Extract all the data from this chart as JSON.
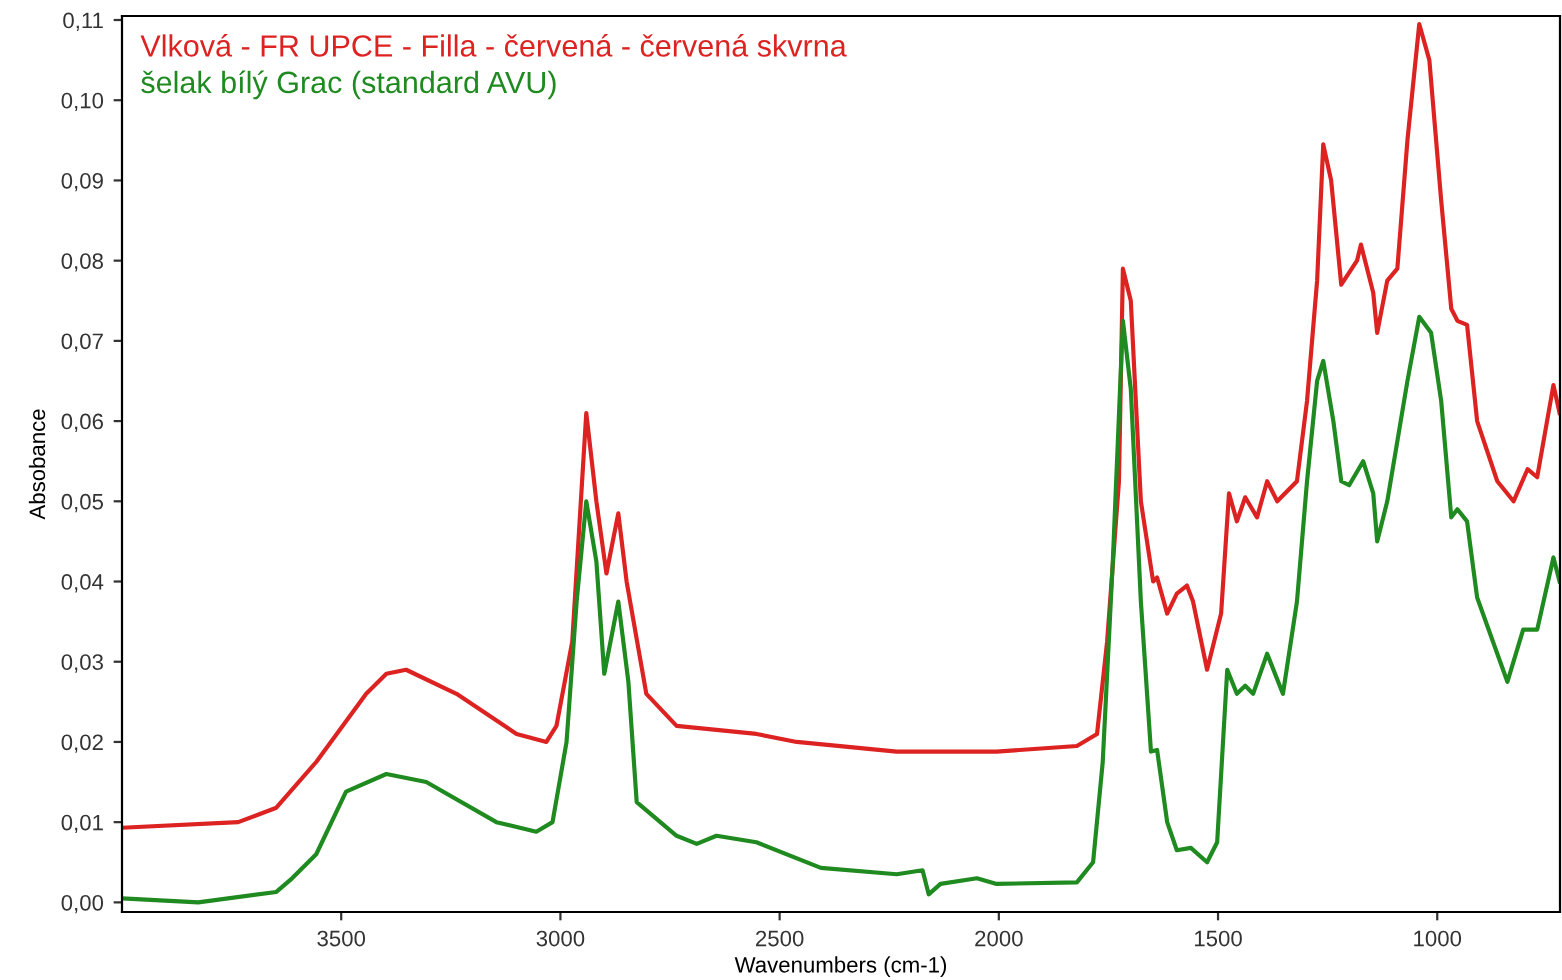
{
  "chart_data": {
    "type": "line",
    "xlabel": "Wavenumbers (cm-1)",
    "ylabel": "Absobance",
    "legend": "top left",
    "grid": false,
    "marker": "none",
    "line_style": "solid",
    "xlim": [
      4000,
      720
    ],
    "ylim": [
      -0.0012,
      0.1105
    ],
    "xticks": [
      3500,
      3000,
      2500,
      2000,
      1500,
      1000
    ],
    "yticks": [
      {
        "value": 0,
        "label": "0,00"
      },
      {
        "value": 0.01,
        "label": "0,01"
      },
      {
        "value": 0.02,
        "label": "0,02"
      },
      {
        "value": 0.03,
        "label": "0,03"
      },
      {
        "value": 0.04,
        "label": "0,04"
      },
      {
        "value": 0.05,
        "label": "0,05"
      },
      {
        "value": 0.06,
        "label": "0,06"
      },
      {
        "value": 0.07,
        "label": "0,07"
      },
      {
        "value": 0.08,
        "label": "0,08"
      },
      {
        "value": 0.09,
        "label": "0,09"
      },
      {
        "value": 0.1,
        "label": "0,10"
      },
      {
        "value": 0.11,
        "label": "0,11"
      }
    ],
    "series": [
      {
        "name": "Vlková - FR UPCE - Filla - červená - červená skvrna",
        "color": "#dd2222",
        "x": [
          4000,
          3735,
          3648,
          3557,
          3443,
          3397,
          3352,
          3237,
          3100,
          3032,
          3009,
          2973,
          2941,
          2918,
          2895,
          2868,
          2849,
          2804,
          2735,
          2553,
          2461,
          2233,
          2005,
          1822,
          1776,
          1753,
          1726,
          1717,
          1699,
          1676,
          1648,
          1639,
          1616,
          1594,
          1571,
          1557,
          1525,
          1493,
          1475,
          1457,
          1438,
          1411,
          1388,
          1365,
          1320,
          1297,
          1274,
          1260,
          1242,
          1219,
          1183,
          1174,
          1146,
          1137,
          1114,
          1091,
          1068,
          1041,
          1018,
          991,
          968,
          954,
          932,
          909,
          863,
          826,
          794,
          772,
          735,
          721
        ],
        "values": [
          0.0093,
          0.01,
          0.0118,
          0.0175,
          0.026,
          0.0285,
          0.029,
          0.026,
          0.021,
          0.02,
          0.022,
          0.0325,
          0.061,
          0.05,
          0.041,
          0.0485,
          0.04,
          0.026,
          0.022,
          0.021,
          0.02,
          0.0188,
          0.0188,
          0.0195,
          0.021,
          0.0325,
          0.0525,
          0.079,
          0.075,
          0.05,
          0.04,
          0.0405,
          0.036,
          0.0385,
          0.0395,
          0.0375,
          0.029,
          0.036,
          0.051,
          0.0475,
          0.0505,
          0.048,
          0.0525,
          0.05,
          0.0525,
          0.0625,
          0.0775,
          0.0945,
          0.09,
          0.077,
          0.08,
          0.082,
          0.076,
          0.071,
          0.0775,
          0.079,
          0.095,
          0.1095,
          0.105,
          0.0875,
          0.074,
          0.0725,
          0.072,
          0.06,
          0.0525,
          0.05,
          0.054,
          0.053,
          0.0645,
          0.061
        ]
      },
      {
        "name": "šelak bílý Grac (standard AVU)",
        "color": "#1f8a1f",
        "x": [
          4000,
          3826,
          3648,
          3612,
          3557,
          3489,
          3397,
          3306,
          3146,
          3055,
          3018,
          2986,
          2963,
          2941,
          2918,
          2900,
          2868,
          2845,
          2826,
          2735,
          2689,
          2644,
          2553,
          2406,
          2233,
          2174,
          2160,
          2133,
          2050,
          2005,
          1822,
          1785,
          1763,
          1740,
          1717,
          1699,
          1676,
          1653,
          1639,
          1616,
          1594,
          1562,
          1525,
          1502,
          1479,
          1457,
          1438,
          1420,
          1388,
          1352,
          1320,
          1297,
          1274,
          1260,
          1237,
          1219,
          1201,
          1169,
          1146,
          1137,
          1114,
          1068,
          1041,
          1014,
          991,
          968,
          954,
          932,
          909,
          863,
          840,
          804,
          772,
          735,
          721
        ],
        "values": [
          0.0005,
          0.0,
          0.0013,
          0.003,
          0.006,
          0.0138,
          0.016,
          0.015,
          0.01,
          0.0088,
          0.01,
          0.02,
          0.0375,
          0.05,
          0.0425,
          0.0285,
          0.0375,
          0.0275,
          0.0125,
          0.0083,
          0.0073,
          0.0083,
          0.0075,
          0.0043,
          0.0035,
          0.004,
          0.001,
          0.0023,
          0.003,
          0.0023,
          0.0025,
          0.005,
          0.0175,
          0.0425,
          0.0725,
          0.064,
          0.0375,
          0.0188,
          0.019,
          0.01,
          0.0065,
          0.0068,
          0.005,
          0.0075,
          0.029,
          0.026,
          0.027,
          0.026,
          0.031,
          0.026,
          0.0375,
          0.0525,
          0.065,
          0.0675,
          0.06,
          0.0525,
          0.052,
          0.055,
          0.051,
          0.045,
          0.05,
          0.065,
          0.073,
          0.071,
          0.0625,
          0.048,
          0.049,
          0.0475,
          0.038,
          0.031,
          0.0275,
          0.034,
          0.034,
          0.043,
          0.04
        ]
      }
    ]
  }
}
